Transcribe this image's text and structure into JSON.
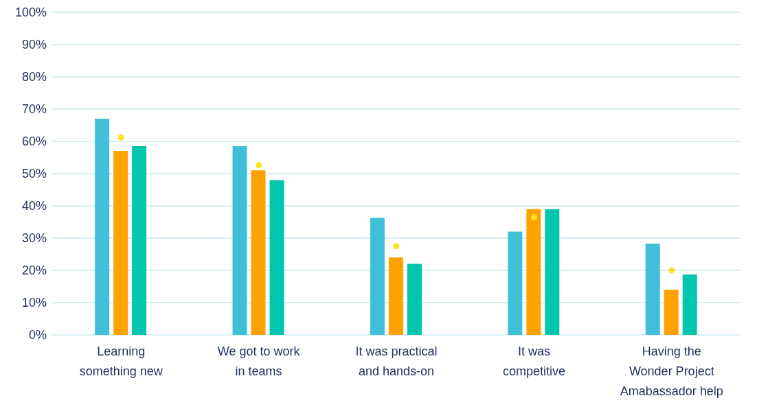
{
  "chart_data": {
    "type": "bar",
    "categories": [
      "Learning something new",
      "We got to work in teams",
      "It was practical and hands-on",
      "It was competitive",
      "Having the Wonder Project Amabassador help"
    ],
    "series": [
      {
        "color": "#40c0d8",
        "values": [
          67,
          58.5,
          36.3,
          32,
          28.3
        ]
      },
      {
        "color": "#ffa200",
        "values": [
          57,
          51,
          24,
          39,
          14
        ]
      },
      {
        "color": "#00c6b0",
        "values": [
          58.5,
          48,
          22,
          39,
          18.7
        ]
      },
      {
        "type": "scatter",
        "color": "#ffe020",
        "x": [
          "Learning something new",
          "We got to work in teams",
          "It was practical and hands-on",
          "It was competitive",
          "Having the Wonder Project Amabassador help"
        ],
        "values": [
          61.2,
          52.6,
          27.5,
          36.5,
          20
        ]
      }
    ],
    "ylim": [
      0,
      100
    ],
    "yticks": [
      {
        "value": 0,
        "label": "0%"
      },
      {
        "value": 10,
        "label": "10%"
      },
      {
        "value": 20,
        "label": "20%"
      },
      {
        "value": 30,
        "label": "30%"
      },
      {
        "value": 40,
        "label": "40%"
      },
      {
        "value": 50,
        "label": "50%"
      },
      {
        "value": 60,
        "label": "60%"
      },
      {
        "value": 70,
        "label": "70%"
      },
      {
        "value": 80,
        "label": "80%"
      },
      {
        "value": 90,
        "label": "90%"
      },
      {
        "value": 100,
        "label": "100%"
      }
    ],
    "grid": "y",
    "legend": false,
    "marker": "circle"
  }
}
